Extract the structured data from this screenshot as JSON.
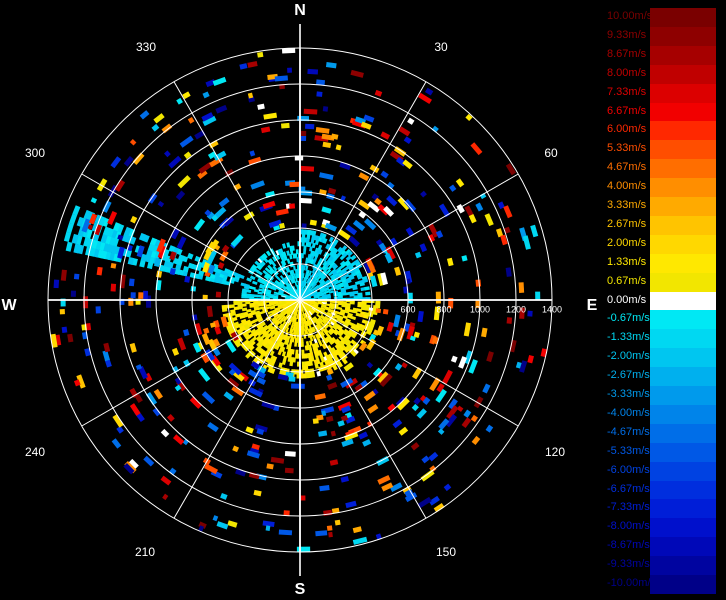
{
  "chart_data": {
    "type": "polar-radar",
    "compass": {
      "north": "N",
      "east": "E",
      "south": "S",
      "west": "W"
    },
    "bearing_labels": [
      "30",
      "60",
      "120",
      "150",
      "210",
      "240",
      "300",
      "330"
    ],
    "range_rings": [
      200,
      400,
      600,
      800,
      1000,
      1200,
      1400
    ],
    "range_tick_labels": [
      "600",
      "800",
      "1000",
      "1200",
      "1400"
    ],
    "r_max": 1400,
    "zero_color": "#ffffff",
    "legend": [
      {
        "label": "10.00m/s",
        "color": "#7a0000"
      },
      {
        "label": "9.33m/s",
        "color": "#8e0000"
      },
      {
        "label": "8.67m/s",
        "color": "#a60000"
      },
      {
        "label": "8.00m/s",
        "color": "#c00000"
      },
      {
        "label": "7.33m/s",
        "color": "#dc0000"
      },
      {
        "label": "6.67m/s",
        "color": "#f20000"
      },
      {
        "label": "6.00m/s",
        "color": "#ff2800"
      },
      {
        "label": "5.33m/s",
        "color": "#ff4e00"
      },
      {
        "label": "4.67m/s",
        "color": "#ff6e00"
      },
      {
        "label": "4.00m/s",
        "color": "#ff8e00"
      },
      {
        "label": "3.33m/s",
        "color": "#ffaa00"
      },
      {
        "label": "2.67m/s",
        "color": "#ffc400"
      },
      {
        "label": "2.00m/s",
        "color": "#ffd800"
      },
      {
        "label": "1.33m/s",
        "color": "#ffe800"
      },
      {
        "label": "0.67m/s",
        "color": "#f2e600"
      },
      {
        "label": "0.00m/s",
        "color": "#ffffff"
      },
      {
        "label": "-0.67m/s",
        "color": "#00e8f4"
      },
      {
        "label": "-1.33m/s",
        "color": "#00d8f2"
      },
      {
        "label": "-2.00m/s",
        "color": "#00c6f0"
      },
      {
        "label": "-2.67m/s",
        "color": "#00b0ee"
      },
      {
        "label": "-3.33m/s",
        "color": "#009aec"
      },
      {
        "label": "-4.00m/s",
        "color": "#0084ea"
      },
      {
        "label": "-4.67m/s",
        "color": "#006ee8"
      },
      {
        "label": "-5.33m/s",
        "color": "#0058e6"
      },
      {
        "label": "-6.00m/s",
        "color": "#0042e2"
      },
      {
        "label": "-6.67m/s",
        "color": "#002ede"
      },
      {
        "label": "-7.33m/s",
        "color": "#001ed8"
      },
      {
        "label": "-8.00m/s",
        "color": "#0010cc"
      },
      {
        "label": "-8.67m/s",
        "color": "#0008b8"
      },
      {
        "label": "-9.33m/s",
        "color": "#0004a0"
      },
      {
        "label": "-10.00m/s",
        "color": "#000088"
      }
    ],
    "echo_regions": [
      {
        "az_min": 0,
        "az_max": 90,
        "r_min": 0,
        "r_max": 390,
        "value": -1.5,
        "density": 0.55
      },
      {
        "az_min": 90,
        "az_max": 270,
        "r_min": 0,
        "r_max": 450,
        "value": 1.0,
        "density": 0.6
      },
      {
        "az_min": 270,
        "az_max": 360,
        "r_min": 0,
        "r_max": 330,
        "value": -1.0,
        "density": 0.45
      },
      {
        "az_min": 282,
        "az_max": 292,
        "r_min": 300,
        "r_max": 1350,
        "value": -1.5,
        "density": 0.65
      },
      {
        "az_min": 0,
        "az_max": 360,
        "r_min": 400,
        "r_max": 1380,
        "value": 0,
        "density": 0.06,
        "mixed": true
      }
    ]
  }
}
